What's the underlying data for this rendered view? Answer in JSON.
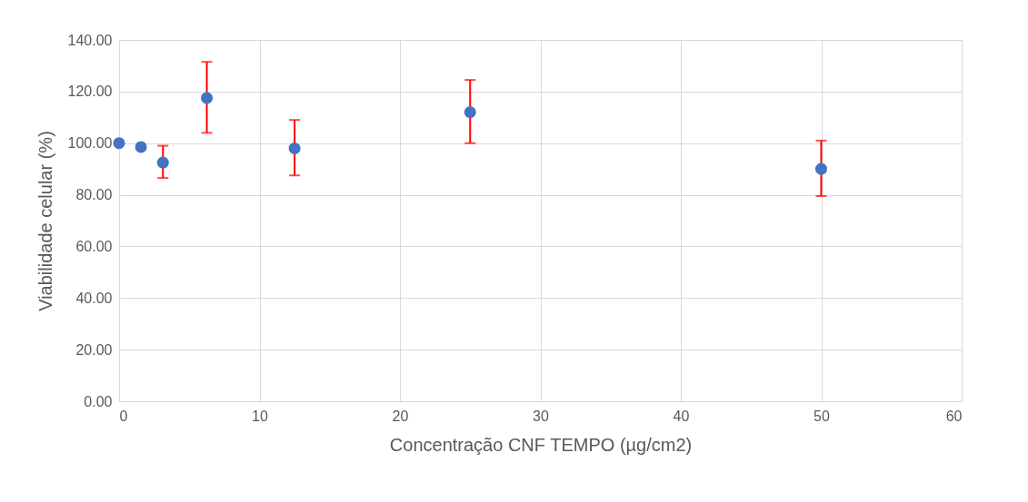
{
  "chart_data": {
    "type": "scatter",
    "xlabel": "Concentração CNF TEMPO (µg/cm2)",
    "ylabel": "Viabilidade celular (%)",
    "x": [
      0,
      1.56,
      3.125,
      6.25,
      12.5,
      25,
      50
    ],
    "series": [
      {
        "color": "#4472c4",
        "values": [
          100,
          98.5,
          92.5,
          117.5,
          98,
          112,
          90
        ],
        "errors": [
          null,
          null,
          [
            86.5,
            99
          ],
          [
            104,
            131.5
          ],
          [
            87.5,
            109
          ],
          [
            100,
            124.5
          ],
          [
            79.5,
            101
          ]
        ]
      }
    ],
    "xlim": [
      0,
      60
    ],
    "xticks": [
      0,
      10,
      20,
      30,
      40,
      50,
      60
    ],
    "ylim": [
      0,
      140
    ],
    "yticks": [
      {
        "value": 0,
        "label": "0.00"
      },
      {
        "value": 20,
        "label": "20.00"
      },
      {
        "value": 40,
        "label": "40.00"
      },
      {
        "value": 60,
        "label": "60.00"
      },
      {
        "value": 80,
        "label": "80.00"
      },
      {
        "value": 100,
        "label": "100.00"
      },
      {
        "value": 120,
        "label": "120.00"
      },
      {
        "value": 140,
        "label": "140.00"
      }
    ],
    "grid": true,
    "marker": "circle"
  }
}
